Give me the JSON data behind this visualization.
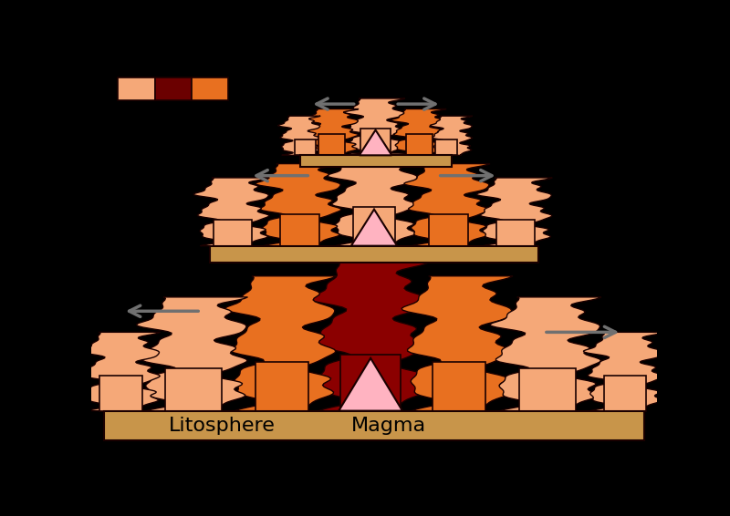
{
  "bg_color": "#000000",
  "litho_color": "#c8954a",
  "magma_tri_color": "#ffb3c1",
  "dark_red": "#8b0000",
  "orange": "#e87020",
  "peach": "#f5a878",
  "light_peach": "#ffc8a0",
  "outline": "#1a0000",
  "arrow_color": "#707070",
  "legend_peach": "#f5a878",
  "legend_darkred": "#6b0000",
  "legend_orange": "#e87020",
  "litho_label": "Litosphere",
  "magma_label": "Magma",
  "font_size": 16
}
